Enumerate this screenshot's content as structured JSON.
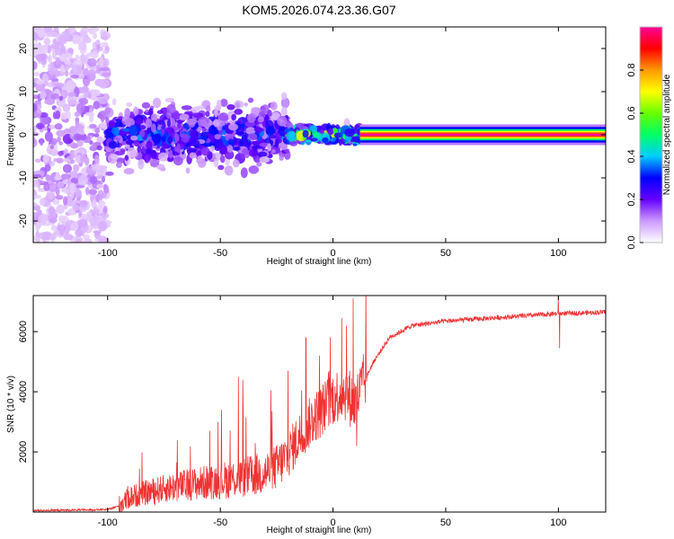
{
  "title": "KOM5.2026.074.23.36.G07",
  "chart_data": [
    {
      "type": "heatmap",
      "name": "spectrogram",
      "xlabel": "Height of straight line (km)",
      "ylabel": "Frequency (Hz)",
      "xlim": [
        -133,
        121
      ],
      "ylim": [
        -25,
        25
      ],
      "xticks": [
        -100,
        -50,
        0,
        50,
        100
      ],
      "xtick_labels": [
        "-100",
        "-50",
        "0",
        "50",
        "100"
      ],
      "yticks": [
        -20,
        -10,
        0,
        10,
        20
      ],
      "ytick_labels": [
        "-20",
        "-10",
        "0",
        "10",
        "20"
      ],
      "colorbar": {
        "label": "Normalized spectral amplitude",
        "range": [
          0,
          1
        ],
        "ticks": [
          0.0,
          0.2,
          0.4,
          0.6,
          0.8
        ],
        "tick_labels": [
          "0.0",
          "0.2",
          "0.4",
          "0.6",
          "0.8"
        ],
        "colors": [
          "#ffffff",
          "#cc99ff",
          "#6600ff",
          "#0000ff",
          "#00ccff",
          "#00ff66",
          "#66ff00",
          "#ffff00",
          "#ff9900",
          "#ff0000",
          "#ff0099"
        ]
      },
      "regions": [
        {
          "x_range": [
            -133,
            -100
          ],
          "freq_spread": 25,
          "amplitude": 0.12,
          "description": "noise"
        },
        {
          "x_range": [
            -100,
            -20
          ],
          "freq_spread": 8,
          "amplitude": 0.25
        },
        {
          "x_range": [
            -20,
            12
          ],
          "freq_spread": 2,
          "amplitude": 0.5
        },
        {
          "x_range": [
            12,
            121
          ],
          "freq_spread": 0.5,
          "amplitude": 0.95
        }
      ]
    },
    {
      "type": "line",
      "name": "snr",
      "xlabel": "Height of straight line (km)",
      "ylabel": "SNR (10 * v/v)",
      "xlim": [
        -133,
        121
      ],
      "ylim": [
        0,
        7200
      ],
      "xticks": [
        -100,
        -50,
        0,
        50,
        100
      ],
      "xtick_labels": [
        "-100",
        "-50",
        "0",
        "50",
        "100"
      ],
      "yticks": [
        2000,
        4000,
        6000
      ],
      "ytick_labels": [
        "2000",
        "4000",
        "6000"
      ],
      "color": "#ee3333",
      "trend": [
        [
          -133,
          50
        ],
        [
          -100,
          80
        ],
        [
          -95,
          200
        ],
        [
          -90,
          500
        ],
        [
          -80,
          700
        ],
        [
          -70,
          850
        ],
        [
          -60,
          950
        ],
        [
          -50,
          1050
        ],
        [
          -40,
          1150
        ],
        [
          -30,
          1300
        ],
        [
          -25,
          1500
        ],
        [
          -20,
          1900
        ],
        [
          -15,
          2500
        ],
        [
          -10,
          3000
        ],
        [
          -5,
          3400
        ],
        [
          0,
          3800
        ],
        [
          5,
          4000
        ],
        [
          10,
          3600
        ],
        [
          13,
          4200
        ],
        [
          18,
          5000
        ],
        [
          25,
          5800
        ],
        [
          35,
          6200
        ],
        [
          50,
          6350
        ],
        [
          70,
          6450
        ],
        [
          90,
          6550
        ],
        [
          100,
          6600
        ],
        [
          110,
          6620
        ],
        [
          121,
          6650
        ]
      ],
      "spikes": [
        {
          "x": 9,
          "y": 7100
        },
        {
          "x": 10.5,
          "y": 2200
        },
        {
          "x": 100,
          "y": 7200
        },
        {
          "x": 100.5,
          "y": 5450
        },
        {
          "x": -42,
          "y": 4500
        },
        {
          "x": -40,
          "y": 4400
        },
        {
          "x": -20,
          "y": 4700
        },
        {
          "x": -12,
          "y": 5800
        },
        {
          "x": -6,
          "y": 5200
        },
        {
          "x": 6,
          "y": 6200
        }
      ]
    }
  ]
}
